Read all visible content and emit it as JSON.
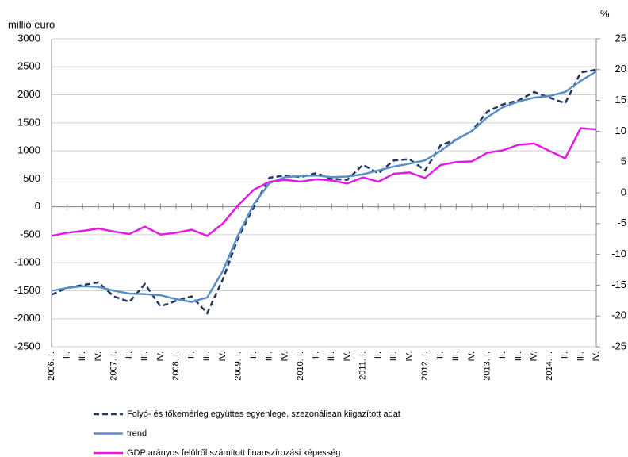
{
  "chart_data": {
    "type": "line",
    "y_label": "millió euro",
    "y2_label": "%",
    "categories": [
      "2006. I.",
      "II.",
      "III.",
      "IV.",
      "2007. I.",
      "II.",
      "III.",
      "IV.",
      "2008. I.",
      "II.",
      "III.",
      "IV.",
      "2009. I.",
      "II.",
      "III.",
      "IV.",
      "2010. I.",
      "II.",
      "III.",
      "IV.",
      "2011. I.",
      "II.",
      "III.",
      "IV.",
      "2012. I.",
      "II.",
      "III.",
      "IV.",
      "2013. I.",
      "II.",
      "III.",
      "IV.",
      "2014. I.",
      "II.",
      "III.",
      "IV."
    ],
    "series": [
      {
        "name": "Folyó- és tőkemérleg együttes egyenlege, szezonálisan kiigazított adat",
        "color": "#1f3864",
        "dash": true,
        "values": [
          -1570,
          -1450,
          -1400,
          -1350,
          -1600,
          -1700,
          -1380,
          -1780,
          -1680,
          -1600,
          -1900,
          -1300,
          -550,
          0,
          520,
          560,
          530,
          600,
          500,
          480,
          750,
          600,
          830,
          850,
          650,
          1100,
          1200,
          1350,
          1700,
          1830,
          1900,
          2050,
          1950,
          1850,
          2400,
          2450
        ]
      },
      {
        "name": "trend",
        "color": "#5b8fc4",
        "values": [
          -1500,
          -1450,
          -1420,
          -1430,
          -1500,
          -1550,
          -1560,
          -1580,
          -1650,
          -1700,
          -1620,
          -1150,
          -500,
          50,
          420,
          530,
          550,
          560,
          530,
          540,
          580,
          650,
          720,
          770,
          830,
          1000,
          1200,
          1350,
          1600,
          1780,
          1880,
          1950,
          1980,
          2050,
          2250,
          2420
        ]
      },
      {
        "name": "GDP arányos felülről számított finanszírozási képesség",
        "color": "#e619e6",
        "axis": "y2",
        "values": [
          -7,
          -6.5,
          -6.2,
          -5.8,
          -6.3,
          -6.7,
          -5.5,
          -6.8,
          -6.5,
          -6,
          -7,
          -5,
          -2,
          0.5,
          1.8,
          2.1,
          1.8,
          2.2,
          2,
          1.5,
          2.5,
          1.8,
          3.1,
          3.3,
          2.4,
          4.5,
          5,
          5.1,
          6.5,
          6.9,
          7.8,
          8,
          6.8,
          5.6,
          10.5,
          10.3
        ]
      }
    ],
    "ylim": [
      -2500,
      3000
    ],
    "yticks": [
      -2500,
      -2000,
      -1500,
      -1000,
      -500,
      0,
      500,
      1000,
      1500,
      2000,
      2500,
      3000
    ],
    "y2lim": [
      -25,
      25
    ],
    "y2ticks": [
      -25,
      -20,
      -15,
      -10,
      -5,
      0,
      5,
      10,
      15,
      20,
      25
    ],
    "grid": true
  }
}
